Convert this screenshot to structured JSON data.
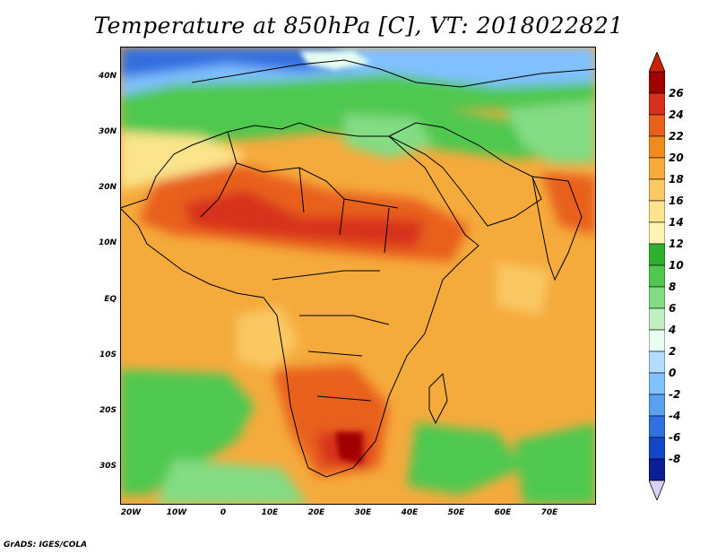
{
  "title": "Temperature at 850hPa [C], VT: 2018022821",
  "credit": "GrADS: IGES/COLA",
  "lat_labels": [
    "40N",
    "30N",
    "20N",
    "10N",
    "EQ",
    "10S",
    "20S",
    "30S"
  ],
  "lon_labels": [
    "20W",
    "10W",
    "0",
    "10E",
    "20E",
    "30E",
    "40E",
    "50E",
    "60E",
    "70E"
  ],
  "colorbar": {
    "labels": [
      "26",
      "24",
      "22",
      "20",
      "18",
      "16",
      "14",
      "12",
      "10",
      "8",
      "6",
      "4",
      "2",
      "0",
      "-2",
      "-4",
      "-6",
      "-8"
    ],
    "colors": [
      "#a00000",
      "#d7301f",
      "#e8601c",
      "#f08c1e",
      "#f5aa3c",
      "#fac864",
      "#fbe48c",
      "#fff2b4",
      "#30b030",
      "#50c850",
      "#84dc84",
      "#c0f0c0",
      "#e6fff0",
      "#b4dcff",
      "#80c0ff",
      "#5aa0f0",
      "#3070e0",
      "#1446c8",
      "#0a1e96"
    ],
    "top_arrow_color": "#cc2200",
    "bottom_arrow_color": "#d8d0f8"
  }
}
